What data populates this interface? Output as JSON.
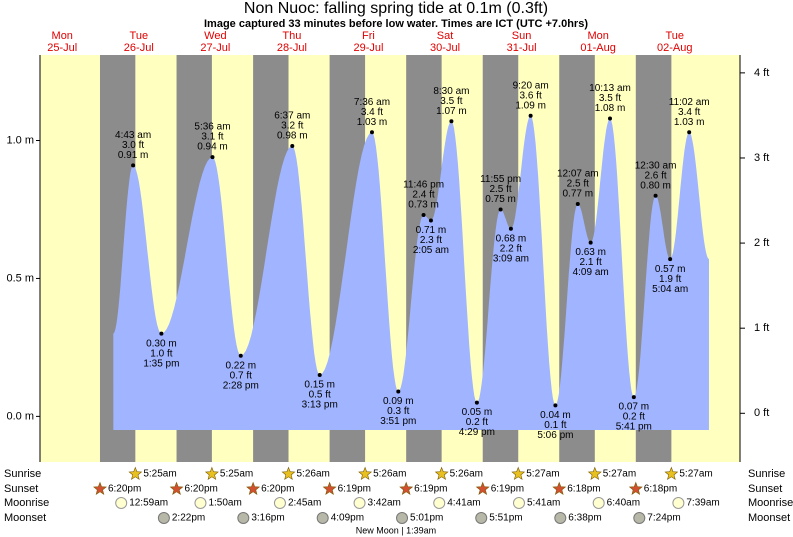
{
  "chart_data": {
    "type": "tide",
    "title": "Non Nuoc: falling  spring tide at 0.1m (0.3ft)",
    "subtitle": "Image captured 33 minutes before low water. Times are ICT (UTC +7.0hrs)",
    "ylim": [
      -0.14,
      1.31
    ],
    "yticks": [
      {
        "value": 0,
        "label": "0.0 m"
      },
      {
        "value": 0.5,
        "label": "0.5 m"
      },
      {
        "value": 1,
        "label": "1.0 m"
      }
    ],
    "y2lim": [
      -0.49,
      4.21
    ],
    "y2ticks": [
      {
        "value": 0,
        "label": "0 ft"
      },
      {
        "value": 1,
        "label": "1 ft"
      },
      {
        "value": 2,
        "label": "2 ft"
      },
      {
        "value": 3,
        "label": "3 ft"
      },
      {
        "value": 4,
        "label": "4 ft"
      }
    ],
    "colors": {
      "day": "#ffffc0",
      "night": "#8c8c8c",
      "water": "#a0b4ff"
    },
    "row_labels": [
      "Sunrise",
      "Sunset",
      "Moonrise",
      "Moonset"
    ],
    "moon_phase": "New Moon | 1:39am",
    "days": [
      {
        "weekday": "Mon",
        "date": "25-Jul",
        "sunrise": null,
        "sunset": "6:20pm",
        "moonrise": null,
        "moonset": null,
        "tides": []
      },
      {
        "weekday": "Tue",
        "date": "26-Jul",
        "sunrise": "5:25am",
        "sunset": "6:20pm",
        "moonrise": "12:59am",
        "moonset": "2:22pm",
        "tides": [
          {
            "time": "4:43 am",
            "m": 0.91,
            "m_label": "0.91 m",
            "ft_label": "3.0 ft"
          },
          {
            "time": "1:35 pm",
            "m": 0.3,
            "m_label": "0.30 m",
            "ft_label": "1.0 ft"
          }
        ]
      },
      {
        "weekday": "Wed",
        "date": "27-Jul",
        "sunrise": "5:25am",
        "sunset": "6:20pm",
        "moonrise": "1:50am",
        "moonset": "3:16pm",
        "tides": [
          {
            "time": "5:36 am",
            "m": 0.94,
            "m_label": "0.94 m",
            "ft_label": "3.1 ft"
          },
          {
            "time": "2:28 pm",
            "m": 0.22,
            "m_label": "0.22 m",
            "ft_label": "0.7 ft"
          }
        ]
      },
      {
        "weekday": "Thu",
        "date": "28-Jul",
        "sunrise": "5:26am",
        "sunset": "6:19pm",
        "moonrise": "2:45am",
        "moonset": "4:09pm",
        "tides": [
          {
            "time": "6:37 am",
            "m": 0.98,
            "m_label": "0.98 m",
            "ft_label": "3.2 ft"
          },
          {
            "time": "3:13 pm",
            "m": 0.15,
            "m_label": "0.15 m",
            "ft_label": "0.5 ft"
          }
        ]
      },
      {
        "weekday": "Fri",
        "date": "29-Jul",
        "sunrise": "5:26am",
        "sunset": "6:19pm",
        "moonrise": "3:42am",
        "moonset": "5:01pm",
        "tides": [
          {
            "time": "7:36 am",
            "m": 1.03,
            "m_label": "1.03 m",
            "ft_label": "3.4 ft"
          },
          {
            "time": "3:51 pm",
            "m": 0.09,
            "m_label": "0.09 m",
            "ft_label": "0.3 ft"
          },
          {
            "time": "11:46 pm",
            "m": 0.73,
            "m_label": "0.73 m",
            "ft_label": "2.4 ft"
          }
        ]
      },
      {
        "weekday": "Sat",
        "date": "30-Jul",
        "sunrise": "5:26am",
        "sunset": "6:19pm",
        "moonrise": "4:41am",
        "moonset": "5:51pm",
        "tides": [
          {
            "time": "2:05 am",
            "m": 0.71,
            "m_label": "0.71 m",
            "ft_label": "2.3 ft"
          },
          {
            "time": "8:30 am",
            "m": 1.07,
            "m_label": "1.07 m",
            "ft_label": "3.5 ft"
          },
          {
            "time": "4:29 pm",
            "m": 0.05,
            "m_label": "0.05 m",
            "ft_label": "0.2 ft"
          },
          {
            "time": "11:55 pm",
            "m": 0.75,
            "m_label": "0.75 m",
            "ft_label": "2.5 ft"
          }
        ]
      },
      {
        "weekday": "Sun",
        "date": "31-Jul",
        "sunrise": "5:27am",
        "sunset": "6:18pm",
        "moonrise": "5:41am",
        "moonset": "6:38pm",
        "tides": [
          {
            "time": "3:09 am",
            "m": 0.68,
            "m_label": "0.68 m",
            "ft_label": "2.2 ft"
          },
          {
            "time": "9:20 am",
            "m": 1.09,
            "m_label": "1.09 m",
            "ft_label": "3.6 ft"
          },
          {
            "time": "5:06 pm",
            "m": 0.04,
            "m_label": "0.04 m",
            "ft_label": "0.1 ft"
          }
        ]
      },
      {
        "weekday": "Mon",
        "date": "01-Aug",
        "sunrise": "5:27am",
        "sunset": "6:18pm",
        "moonrise": "6:40am",
        "moonset": "7:24pm",
        "tides": [
          {
            "time": "12:07 am",
            "m": 0.77,
            "m_label": "0.77 m",
            "ft_label": "2.5 ft"
          },
          {
            "time": "4:09 am",
            "m": 0.63,
            "m_label": "0.63 m",
            "ft_label": "2.1 ft"
          },
          {
            "time": "10:13 am",
            "m": 1.08,
            "m_label": "1.08 m",
            "ft_label": "3.5 ft"
          },
          {
            "time": "5:41 pm",
            "m": 0.07,
            "m_label": "0.07 m",
            "ft_label": "0.2 ft"
          }
        ]
      },
      {
        "weekday": "Tue",
        "date": "02-Aug",
        "sunrise": "5:27am",
        "sunset": null,
        "moonrise": "7:39am",
        "moonset": null,
        "tides": [
          {
            "time": "12:30 am",
            "m": 0.8,
            "m_label": "0.80 m",
            "ft_label": "2.6 ft"
          },
          {
            "time": "5:04 am",
            "m": 0.57,
            "m_label": "0.57 m",
            "ft_label": "1.9 ft"
          },
          {
            "time": "11:02 am",
            "m": 1.03,
            "m_label": "1.03 m",
            "ft_label": "3.4 ft"
          }
        ]
      }
    ]
  }
}
